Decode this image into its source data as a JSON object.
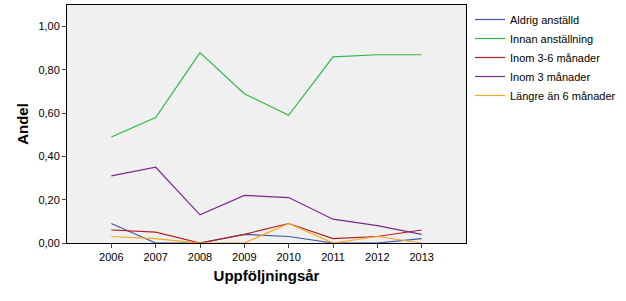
{
  "chart_data": {
    "type": "line",
    "x_label": "Uppföljningsår",
    "y_label": "Andel",
    "x": [
      2006,
      2007,
      2008,
      2009,
      2010,
      2011,
      2012,
      2013
    ],
    "xlim": [
      2005,
      2014
    ],
    "xticks": [
      2006,
      2007,
      2008,
      2009,
      2010,
      2011,
      2012,
      2013
    ],
    "ylim": [
      0,
      1.1
    ],
    "yticks": [
      {
        "value": 0,
        "label": "0,00"
      },
      {
        "value": 0.2,
        "label": "0,20"
      },
      {
        "value": 0.4,
        "label": "0,40"
      },
      {
        "value": 0.6,
        "label": "0,60"
      },
      {
        "value": 0.8,
        "label": "0,80"
      },
      {
        "value": 1.0,
        "label": "1,00"
      }
    ],
    "grid": false,
    "legend": "right",
    "series": [
      {
        "name": "Aldrig anställd",
        "color": "#3e58ac",
        "values": [
          0.09,
          0.0,
          0.0,
          0.04,
          0.03,
          0.0,
          0.0,
          0.02
        ]
      },
      {
        "name": "Innan anställning",
        "color": "#2eb848",
        "values": [
          0.49,
          0.58,
          0.88,
          0.69,
          0.59,
          0.86,
          0.87,
          0.87
        ]
      },
      {
        "name": "Inom 3-6 månader",
        "color": "#b01e1e",
        "values": [
          0.06,
          0.05,
          0.0,
          0.04,
          0.09,
          0.02,
          0.03,
          0.06
        ]
      },
      {
        "name": "Inom 3 månader",
        "color": "#7a2a8c",
        "values": [
          0.31,
          0.35,
          0.13,
          0.22,
          0.21,
          0.11,
          0.08,
          0.04
        ]
      },
      {
        "name": "Längre än 6 månader",
        "color": "#f5a623",
        "values": [
          0.03,
          0.02,
          0.0,
          0.0,
          0.09,
          0.0,
          0.03,
          0.0
        ]
      }
    ]
  }
}
